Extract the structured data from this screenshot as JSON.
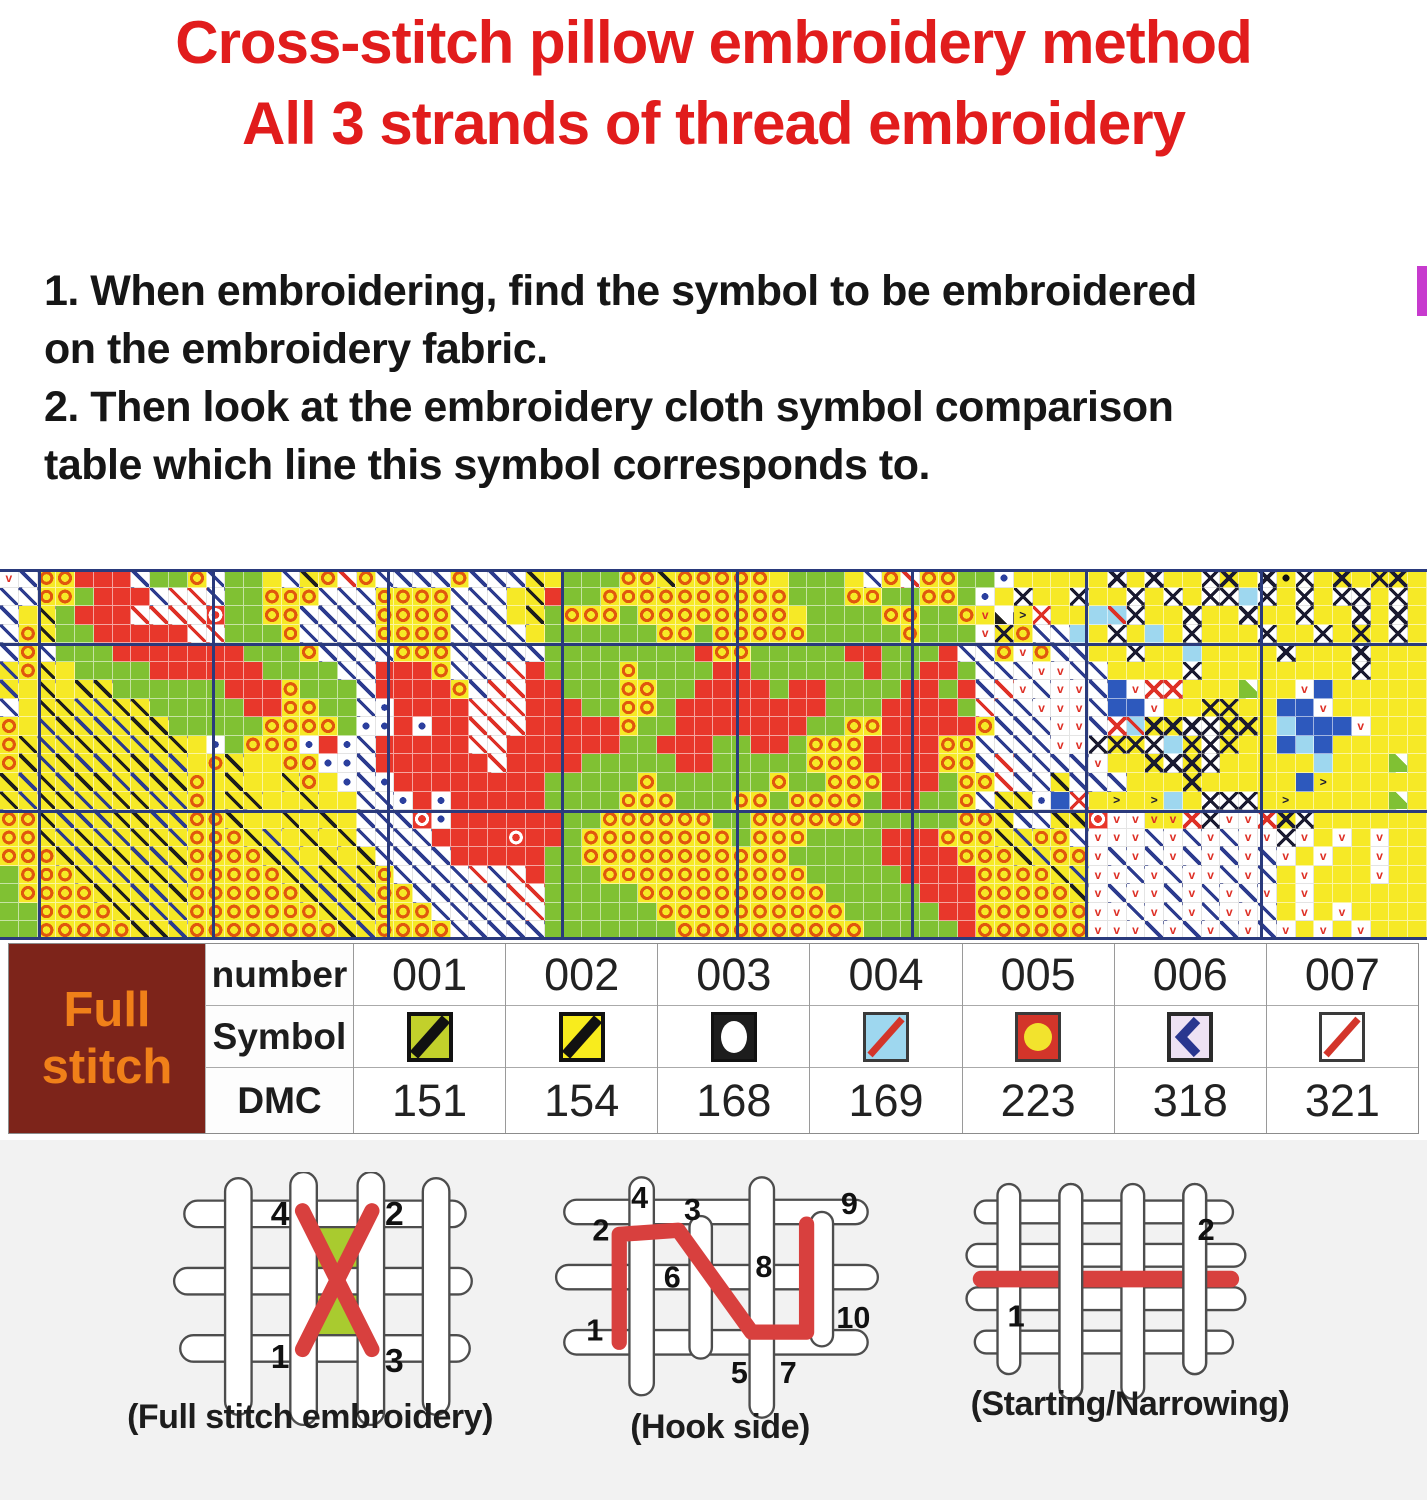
{
  "title": {
    "line1": "Cross-stitch pillow embroidery method",
    "line2": "All 3 strands of thread embroidery"
  },
  "instructions": {
    "lines": [
      "1. When embroidering, find the symbol to be embroidered",
      "on the embroidery fabric.",
      "2. Then look at the embroidery cloth symbol comparison",
      "table which line this symbol corresponds to."
    ]
  },
  "colors": {
    "title": "#e11c1c",
    "text": "#161616",
    "maroon": "#7d241a",
    "orange": "#f08019",
    "chart_navy": "#2a3a7c",
    "stitch_red": "#d8403e",
    "bottom_bg": "#f2f2f2",
    "edge_marker": "#c73bce"
  },
  "pattern": {
    "cols": 76,
    "rows": 20,
    "gridline_color": "#2a3a7c",
    "major_vlines_cols": [
      2,
      11.3,
      20.6,
      29.9,
      39.2,
      48.5,
      57.8,
      67.1
    ],
    "major_hlines_rows": [
      0,
      4,
      13,
      19.85
    ],
    "legend": {
      "R": {
        "bg": "#e8372b"
      },
      "G": {
        "bg": "#80c133"
      },
      "Y": {
        "bg": "#f6e926"
      },
      "O": {
        "bg": "#f6e926",
        "mark": "ring",
        "mc": "#e0570e"
      },
      "B": {
        "bg": "#ffffff",
        "mark": "slash",
        "mc": "#2c3b8e"
      },
      "r": {
        "bg": "#ffffff",
        "mark": "slash",
        "mc": "#de3026"
      },
      "K": {
        "bg": "#f6e926",
        "mark": "slash",
        "mc": "#1d1d1d"
      },
      "J": {
        "bg": "#f6e926",
        "mark": "slash",
        "mc": "#2c3b8e"
      },
      "X": {
        "bg": "#f6e926",
        "mark": "cross",
        "mc": "#1a1a30"
      },
      "x": {
        "bg": "#ffffff",
        "mark": "cross",
        "mc": "#1a1a30"
      },
      "E": {
        "bg": "#ffffff",
        "mark": "cross",
        "mc": "#de3026"
      },
      "v": {
        "bg": "#ffffff",
        "mark": "vee",
        "mc": "#de3026"
      },
      "V": {
        "bg": "#f6e926",
        "mark": "vee",
        "mc": "#de3026"
      },
      "D": {
        "bg": "#ffffff",
        "mark": "dot",
        "mc": "#2b3f9e"
      },
      "Q": {
        "bg": "#2d59bd"
      },
      "C": {
        "bg": "#9ed7ef"
      },
      "c": {
        "bg": "#9ed7ef",
        "mark": "slash",
        "mc": "#de3026"
      },
      "W": {
        "bg": "#e8372b",
        "mark": "ring",
        "mc": "#ffffff"
      },
      ">": {
        "bg": "#f6e926",
        "mark": "chev",
        "mc": "#1a1a30"
      },
      "P": {
        "bg": "#f6e926",
        "mark": "dot",
        "mc": "#111111"
      },
      "T": {
        "bg": "#ffffff",
        "mark": "tri",
        "mc": "#1d1d1d"
      },
      "N": {
        "bg": "#80c133",
        "mark": "corner",
        "mc": "#ffffff"
      }
    },
    "grid_groups": [
      [
        "vBOO",
        "RRRB",
        "GGOB",
        "GGYB",
        "KOrO",
        "BBBB",
        "OBBB",
        "KYGG",
        "GOOK",
        "OOOO",
        "OYGG",
        "GYBO",
        "rOOG",
        "GDYY",
        "YYYx",
        "YxYY",
        "xXYx",
        "PxYX",
        "YXXY"
      ],
      [
        "BBOO",
        "GRRR",
        "BrrB",
        "GGOO",
        "OBBB",
        "OOOO",
        "BBBY",
        "KRGG",
        "OOOO",
        "OOOO",
        "OOGG",
        "GOOG",
        "GOOG",
        "DYxY",
        "YxYY",
        "xYxY",
        "xxCx",
        "YxYx",
        "xYxY"
      ],
      [
        "BYKG",
        "RRRr",
        "rrrW",
        "GGOO",
        "BBBB",
        "OOOO",
        "BBBY",
        "KGOO",
        "OGOO",
        "OOOO",
        "OOYG",
        "GGGO",
        "OGGO",
        "VT>E",
        "YYCc",
        "xYYx",
        "YYxY",
        "YxYY",
        "xYxY"
      ],
      [
        "BOKG",
        "GRRR",
        "RRrr",
        "GGGO",
        "BBBB",
        "OOOO",
        "BBBB",
        "YGGG",
        "GGGO",
        "OGOO",
        "OOOG",
        "GGGG",
        "OGGG",
        "vXOB",
        "BCYx",
        "YCYx",
        "YYYx",
        "YYxY",
        "XYxY"
      ],
      [
        "BOBG",
        "GGRR",
        "RRRR",
        "RGGG",
        "OBBB",
        "BOOO",
        "BBBB",
        "BGGG",
        "GGGG",
        "GROO",
        "GGGG",
        "GRRG",
        "GGRB",
        "BOvO",
        "BBYY",
        "xYYC",
        "YYYY",
        "xYYY",
        "xYYY"
      ],
      [
        "JOKY",
        "GGGG",
        "RRRR",
        "RRGG",
        "GGBB",
        "RRRO",
        "BBBr",
        "RGGG",
        "GOGG",
        "GGRR",
        "GGGG",
        "GGRG",
        "GRRG",
        "BBBv",
        "vBBY",
        "YYYx",
        "YYYY",
        "YYYY",
        "xYYY"
      ],
      [
        "JYKY",
        "KKGG",
        "GGGG",
        "RRRO",
        "GGGB",
        "RRRR",
        "OBrr",
        "RRGG",
        "GOOG",
        "GRRR",
        "RGRR",
        "GGGG",
        "RRGR",
        "BrvB",
        "vvBQ",
        "vEEY",
        "YYNY",
        "YvQY",
        "YYYY"
      ],
      [
        "BYKK",
        "JJKK",
        "GGGG",
        "GRRO",
        "OGGB",
        "DRRR",
        "Rrrr",
        "RRRG",
        "GOOG",
        "RRRR",
        "RRRR",
        "GGGR",
        "RRRG",
        "rBBv",
        "vvBQ",
        "QvYY",
        "XXYY",
        "QQvY",
        "YYYY"
      ],
      [
        "OYJK",
        "JJJK",
        "KGGG",
        "GGOO",
        "OOGD",
        "DRDR",
        "Rrrr",
        "RRRR",
        "ROGG",
        "RRRR",
        "RRRG",
        "GOOR",
        "RRRR",
        "OBBB",
        "vvBE",
        "cXXx",
        "xXXY",
        "CQQQ",
        "vYYY"
      ],
      [
        "OKJJ",
        "KKJJ",
        "KKYD",
        "GOOO",
        "DRDB",
        "RRRR",
        "RrrR",
        "RRRR",
        "RGGR",
        "RRGG",
        "RRGO",
        "OORR",
        "RROO",
        "BBBB",
        "vvxX",
        "XxCX",
        "xXYY",
        "QCQY",
        "YYYY"
      ],
      [
        "OKJK",
        "JJKK",
        "JJYO",
        "KYYO",
        "ODDB",
        "RRRR",
        "RRrR",
        "RRRG",
        "GGGG",
        "RRGG",
        "GGGO",
        "OORR",
        "RROO",
        "BrBB",
        "BBvY",
        "YXxX",
        "xYYY",
        "YYCY",
        "YYNY"
      ],
      [
        "KJKJ",
        "KKJJ",
        "KKOY",
        "KYYK",
        "OYDB",
        "DRRR",
        "RRRR",
        "RGGG",
        "GGOG",
        "GGGG",
        "GOGG",
        "OOOR",
        "RRGO",
        "OrBB",
        "KBBB",
        "YYYX",
        "YYYY",
        "YQ>Y",
        "YYYY"
      ],
      [
        "KJKK",
        "JJKK",
        "JJOY",
        "KKYY",
        "KYYB",
        "BDRD",
        "RRRR",
        "RGGG",
        "GOOO",
        "GGGO",
        "OGOO",
        "OOGR",
        "RGGO",
        "BKKD",
        "QEY>",
        "Y>CY",
        "xxxY",
        ">YYY",
        "YYNY"
      ],
      [
        "OOKJ",
        "JJKK",
        "JJOO",
        "KYYK",
        "YKYB",
        "BBWD",
        "RRRR",
        "RRGG",
        "OOOO",
        "OOGG",
        "OOOO",
        "OOGG",
        "GGGO",
        "OKBB",
        "KKWv",
        "vVVE",
        "xvvE",
        "XxYY",
        "YYYY"
      ],
      [
        "OOKJ",
        "KJJK",
        "KJOO",
        "OKJY",
        "KYKB",
        "BBBR",
        "RRRW",
        "RRGO",
        "OOOO",
        "OOOG",
        "OOOG",
        "GGGR",
        "RROO",
        "OKJO",
        "OBvv",
        "vBvB",
        "vBvv",
        "xvYv",
        "YvYY"
      ],
      [
        "OOOK",
        "JKKJ",
        "JKOO",
        "OOKJ",
        "YKYK",
        "BBBB",
        "RRRR",
        "RGGO",
        "OOOO",
        "OOOO",
        "OOGG",
        "GGGR",
        "RRRO",
        "OOKJ",
        "OOvB",
        "vBvB",
        "vBvB",
        "vYvY",
        "YvYY"
      ],
      [
        "GOOO",
        "KJJK",
        "KJOO",
        "OOOK",
        "JKJK",
        "OBBB",
        "BrBr",
        "RGGG",
        "OOOO",
        "OOOO",
        "OOOG",
        "GGGG",
        "RRRR",
        "OOOO",
        "KJvv",
        "BvBv",
        "vBvB",
        "YvYY",
        "YvYY"
      ],
      [
        "GOOO",
        "OKKJ",
        "JKOO",
        "OOOO",
        "KJKJ",
        "OOBB",
        "BBBr",
        "rGGG",
        "GGOO",
        "OOOO",
        "OOOO",
        "GGGG",
        "GRRR",
        "OOOO",
        "OKvB",
        "vvBv",
        "BvBv",
        "YvYY",
        "YYYY"
      ],
      [
        "GGOO",
        "OOKK",
        "JJOO",
        "OOOO",
        "OKJK",
        "OOOB",
        "BBBB",
        "rGGG",
        "GGGO",
        "OOOO",
        "OOOO",
        "OGGG",
        "GGRR",
        "OOOO",
        "OOvv",
        "BvBv",
        "BvvB",
        "YvYv",
        "YYYY"
      ],
      [
        "GGOO",
        "OOOK",
        "KJOO",
        "OOOO",
        "OOKJ",
        "OOOO",
        "BBBB",
        "BGGG",
        "GGGG",
        "OOOO",
        "OOOO",
        "OOGG",
        "GGGR",
        "OOOO",
        "OOvv",
        "vBvB",
        "vBvB",
        "vYvY",
        "vYYY"
      ]
    ]
  },
  "symbol_table": {
    "group_label_line1": "Full",
    "group_label_line2": "stitch",
    "row_labels": [
      "number",
      "Symbol",
      "DMC"
    ],
    "columns": [
      {
        "number": "001",
        "dmc": "151",
        "symbol": {
          "kind": "slash",
          "bg": "#c2d02b",
          "fg": "#111111",
          "border": "#111111",
          "bw": 4,
          "lw": 11
        }
      },
      {
        "number": "002",
        "dmc": "154",
        "symbol": {
          "kind": "slash",
          "bg": "#f8ec1d",
          "fg": "#111111",
          "border": "#111111",
          "bw": 4,
          "lw": 11
        }
      },
      {
        "number": "003",
        "dmc": "168",
        "symbol": {
          "kind": "ellipse",
          "bg": "#1d1d1d",
          "fg": "#ffffff",
          "border": "#111111",
          "bw": 3
        }
      },
      {
        "number": "004",
        "dmc": "169",
        "symbol": {
          "kind": "slash",
          "bg": "#9ed7ef",
          "fg": "#d3352a",
          "border": "#3a3a3a",
          "bw": 3,
          "lw": 7
        }
      },
      {
        "number": "005",
        "dmc": "223",
        "symbol": {
          "kind": "circle",
          "bg": "#d3352a",
          "fg": "#f2e32d",
          "border": "#3a3a3a",
          "bw": 3
        }
      },
      {
        "number": "006",
        "dmc": "318",
        "symbol": {
          "kind": "chevron",
          "bg": "#eee2f4",
          "fg": "#29368f",
          "border": "#2a2a2a",
          "bw": 4
        }
      },
      {
        "number": "007",
        "dmc": "321",
        "symbol": {
          "kind": "slash",
          "bg": "#ffffff",
          "fg": "#d3352a",
          "border": "#3a3a3a",
          "bw": 3,
          "lw": 7
        }
      }
    ]
  },
  "diagrams": [
    {
      "caption": "(Full stitch embroidery)",
      "numbers": [
        "4",
        "2",
        "1",
        "3"
      ]
    },
    {
      "caption": "(Hook side)",
      "numbers": [
        "2",
        "4",
        "3",
        "9",
        "6",
        "8",
        "1",
        "5",
        "7",
        "10"
      ]
    },
    {
      "caption": "(Starting/Narrowing)",
      "numbers": [
        "1",
        "2"
      ]
    }
  ]
}
